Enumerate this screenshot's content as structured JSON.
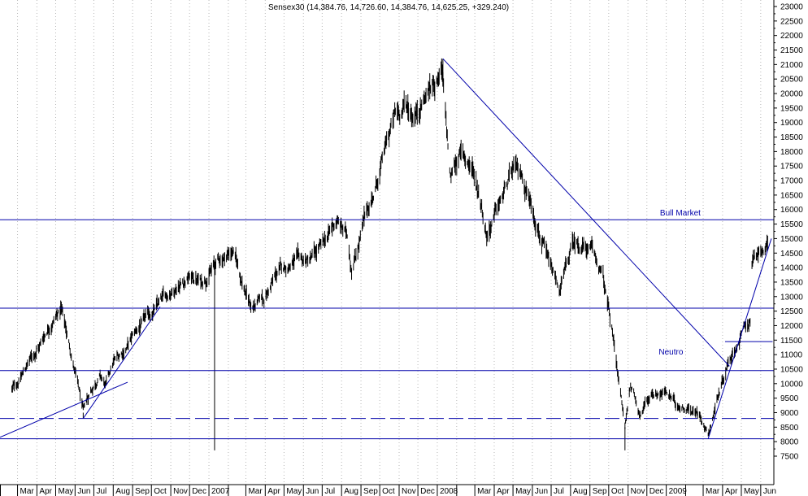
{
  "chart_data": {
    "type": "bar",
    "subtype": "ohlc",
    "title": "Sensex30 (14,384.76, 14,726.60, 14,384.76, 14,625.25, +329.240)",
    "y_axis": {
      "position": "right",
      "ylim": [
        7000,
        23300
      ],
      "ticks": [
        7500,
        8000,
        8500,
        9000,
        9500,
        10000,
        10500,
        11000,
        11500,
        12000,
        12500,
        13000,
        13500,
        14000,
        14500,
        15000,
        15500,
        16000,
        16500,
        17000,
        17500,
        18000,
        18500,
        19000,
        19500,
        20000,
        20500,
        21000,
        21500,
        22000,
        22500,
        23000
      ],
      "tick_labels": [
        "7500",
        "8000",
        "8500",
        "9000",
        "9500",
        "10000",
        "10500",
        "11000",
        "11500",
        "12000",
        "12500",
        "13000",
        "13500",
        "14000",
        "14500",
        "15000",
        "15500",
        "16000",
        "16500",
        "17000",
        "17500",
        "18000",
        "18500",
        "19000",
        "19500",
        "20000",
        "20500",
        "21000",
        "21500",
        "22000",
        "22500",
        "23000"
      ]
    },
    "x_axis": {
      "months": [
        "Mar",
        "Apr",
        "May",
        "Jun",
        "Jul",
        "Aug",
        "Sep",
        "Oct",
        "Nov",
        "Dec",
        "2007",
        "Mar",
        "Apr",
        "May",
        "Jun",
        "Jul",
        "Aug",
        "Sep",
        "Oct",
        "Nov",
        "Dec",
        "2008",
        "Mar",
        "Apr",
        "May",
        "Jun",
        "Jul",
        "Aug",
        "Sep",
        "Oct",
        "Nov",
        "Dec",
        "2009",
        "Mar",
        "Apr",
        "May",
        "Jun"
      ]
    },
    "grid": {
      "vertical": true,
      "style": "dotted"
    },
    "price_anchors": [
      [
        "2006-02-20",
        9800
      ],
      [
        "2006-03-01",
        10000
      ],
      [
        "2006-03-20",
        10800
      ],
      [
        "2006-04-05",
        11300
      ],
      [
        "2006-04-20",
        12000
      ],
      [
        "2006-05-10",
        12600
      ],
      [
        "2006-05-20",
        11600
      ],
      [
        "2006-06-05",
        10000
      ],
      [
        "2006-06-14",
        9000
      ],
      [
        "2006-06-25",
        9700
      ],
      [
        "2006-07-10",
        10300
      ],
      [
        "2006-07-20",
        9900
      ],
      [
        "2006-08-01",
        10700
      ],
      [
        "2006-08-20",
        11200
      ],
      [
        "2006-09-10",
        11900
      ],
      [
        "2006-10-01",
        12400
      ],
      [
        "2006-10-20",
        12900
      ],
      [
        "2006-11-10",
        13400
      ],
      [
        "2006-12-01",
        13700
      ],
      [
        "2006-12-20",
        13500
      ],
      [
        "2007-01-15",
        14200
      ],
      [
        "2007-02-08",
        14600
      ],
      [
        "2007-02-28",
        13200
      ],
      [
        "2007-03-10",
        12600
      ],
      [
        "2007-03-30",
        12900
      ],
      [
        "2007-04-20",
        13800
      ],
      [
        "2007-05-15",
        14200
      ],
      [
        "2007-06-10",
        14200
      ],
      [
        "2007-07-01",
        14700
      ],
      [
        "2007-07-24",
        15600
      ],
      [
        "2007-08-10",
        15100
      ],
      [
        "2007-08-17",
        14000
      ],
      [
        "2007-09-05",
        15500
      ],
      [
        "2007-09-25",
        16800
      ],
      [
        "2007-10-15",
        18500
      ],
      [
        "2007-10-25",
        19200
      ],
      [
        "2007-11-10",
        19600
      ],
      [
        "2007-11-25",
        19300
      ],
      [
        "2007-12-15",
        20000
      ],
      [
        "2008-01-08",
        20800
      ],
      [
        "2008-01-22",
        17000
      ],
      [
        "2008-02-05",
        18000
      ],
      [
        "2008-02-25",
        17500
      ],
      [
        "2008-03-10",
        16400
      ],
      [
        "2008-03-20",
        15200
      ],
      [
        "2008-04-10",
        16200
      ],
      [
        "2008-05-01",
        17300
      ],
      [
        "2008-05-15",
        17200
      ],
      [
        "2008-06-10",
        15500
      ],
      [
        "2008-06-25",
        14200
      ],
      [
        "2008-07-15",
        13200
      ],
      [
        "2008-08-05",
        14800
      ],
      [
        "2008-08-20",
        14800
      ],
      [
        "2008-09-05",
        14500
      ],
      [
        "2008-09-20",
        13800
      ],
      [
        "2008-10-05",
        12000
      ],
      [
        "2008-10-15",
        10500
      ],
      [
        "2008-10-27",
        8500
      ],
      [
        "2008-11-05",
        10000
      ],
      [
        "2008-11-20",
        9000
      ],
      [
        "2008-12-10",
        9700
      ],
      [
        "2008-12-31",
        9700
      ],
      [
        "2009-01-15",
        9300
      ],
      [
        "2009-02-05",
        9200
      ],
      [
        "2009-02-25",
        8900
      ],
      [
        "2009-03-09",
        8300
      ],
      [
        "2009-03-25",
        9600
      ],
      [
        "2009-04-10",
        10800
      ],
      [
        "2009-04-25",
        11400
      ],
      [
        "2009-05-08",
        12000
      ],
      [
        "2009-05-15",
        12200
      ],
      [
        "2009-05-18",
        14200
      ],
      [
        "2009-05-28",
        14300
      ],
      [
        "2009-06-08",
        14800
      ],
      [
        "2009-06-12",
        14625
      ]
    ],
    "extremes": [
      [
        "2007-01-10",
        7700,
        "low"
      ],
      [
        "2008-01-10",
        21200,
        "high"
      ],
      [
        "2006-06-14",
        8800,
        "low"
      ],
      [
        "2008-10-27",
        7700,
        "low"
      ]
    ],
    "horizontal_lines": [
      {
        "level": 15650,
        "style": "solid"
      },
      {
        "level": 12600,
        "style": "solid"
      },
      {
        "level": 10450,
        "style": "solid"
      },
      {
        "level": 8800,
        "style": "dashed"
      },
      {
        "level": 8100,
        "style": "solid"
      },
      {
        "level": 11450,
        "style": "solid",
        "from": "2009-04-05",
        "to": "2009-06-20"
      }
    ],
    "trend_lines": [
      {
        "from": [
          "2006-02-01",
          8150
        ],
        "to": [
          "2006-08-24",
          10050
        ]
      },
      {
        "from": [
          "2006-06-14",
          8800
        ],
        "to": [
          "2006-10-15",
          12650
        ]
      },
      {
        "from": [
          "2008-01-10",
          21200
        ],
        "to": [
          "2009-04-12",
          10600
        ]
      },
      {
        "from": [
          "2009-03-09",
          8100
        ],
        "to": [
          "2009-06-18",
          15000
        ]
      }
    ],
    "annotations": [
      {
        "text": "Bull Market",
        "date": "2008-12-22",
        "value": 15800
      },
      {
        "text": "Neutro",
        "date": "2008-12-20",
        "value": 11000
      }
    ],
    "colors": {
      "price": "#000000",
      "lines": "#0000aa",
      "grid": "#b8b8b8",
      "axis": "#000000"
    }
  }
}
